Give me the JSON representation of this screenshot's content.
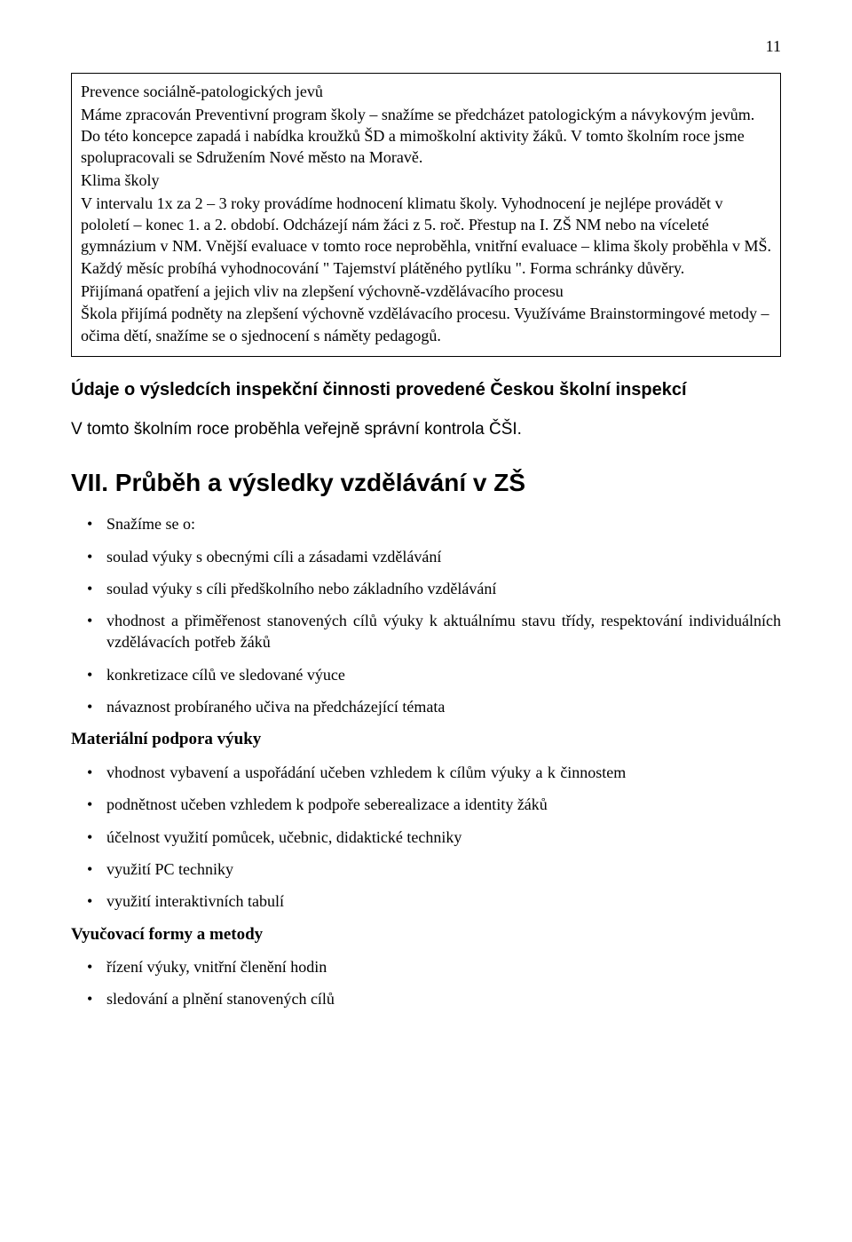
{
  "page_number": "11",
  "box": {
    "t1": "Prevence sociálně-patologických jevů",
    "p1": "Máme zpracován Preventivní program školy – snažíme se předcházet patologickým a návykovým jevům. Do této koncepce zapadá i nabídka kroužků ŠD a mimoškolní aktivity žáků. V tomto školním roce jsme spolupracovali se Sdružením Nové město na Moravě.",
    "t2": "Klima školy",
    "p2": "V intervalu 1x za 2 – 3 roky provádíme hodnocení klimatu školy. Vyhodnocení je nejlépe provádět v pololetí – konec 1. a 2. období. Odcházejí nám žáci z 5. roč. Přestup na I. ZŠ NM nebo na víceleté gymnázium v NM. Vnější evaluace v tomto roce neproběhla, vnitřní evaluace – klima školy proběhla v MŠ. Každý měsíc probíhá vyhodnocování \" Tajemství plátěného pytlíku \". Forma schránky důvěry.",
    "t3": "Přijímaná opatření a jejich vliv na zlepšení výchovně-vzdělávacího procesu",
    "p3": "Škola přijímá podněty na zlepšení výchovně vzdělávacího procesu. Využíváme Brainstormingové metody – očima dětí, snažíme se o sjednocení s náměty pedagogů."
  },
  "section_heading": "Údaje o výsledcích inspekční činnosti provedené Českou školní inspekcí",
  "body_line": "V tomto školním roce proběhla veřejně správní kontrola ČŠI.",
  "main_heading": "VII. Průběh a výsledky vzdělávání v ZŠ",
  "list1": {
    "i0": "Snažíme se o:",
    "i1": "soulad výuky s obecnými cíli a zásadami vzdělávání",
    "i2": "soulad výuky s cíli předškolního nebo základního vzdělávání",
    "i3": "vhodnost a přiměřenost stanovených cílů výuky k aktuálnímu stavu třídy, respektování individuálních vzdělávacích potřeb žáků",
    "i4": "konkretizace cílů ve sledované výuce",
    "i5": "návaznost probíraného učiva na předcházející témata"
  },
  "sub1": "Materiální podpora výuky",
  "list2": {
    "i0": "vhodnost vybavení a uspořádání učeben vzhledem k cílům výuky a k činnostem",
    "i1": "podnětnost učeben vzhledem k podpoře seberealizace a identity žáků",
    "i2": "účelnost využití pomůcek, učebnic, didaktické techniky",
    "i3": "využití PC techniky",
    "i4": "využití interaktivních tabulí"
  },
  "sub2": "Vyučovací formy a metody",
  "list3": {
    "i0": "řízení výuky, vnitřní členění hodin",
    "i1": "sledování a plnění stanovených cílů"
  }
}
